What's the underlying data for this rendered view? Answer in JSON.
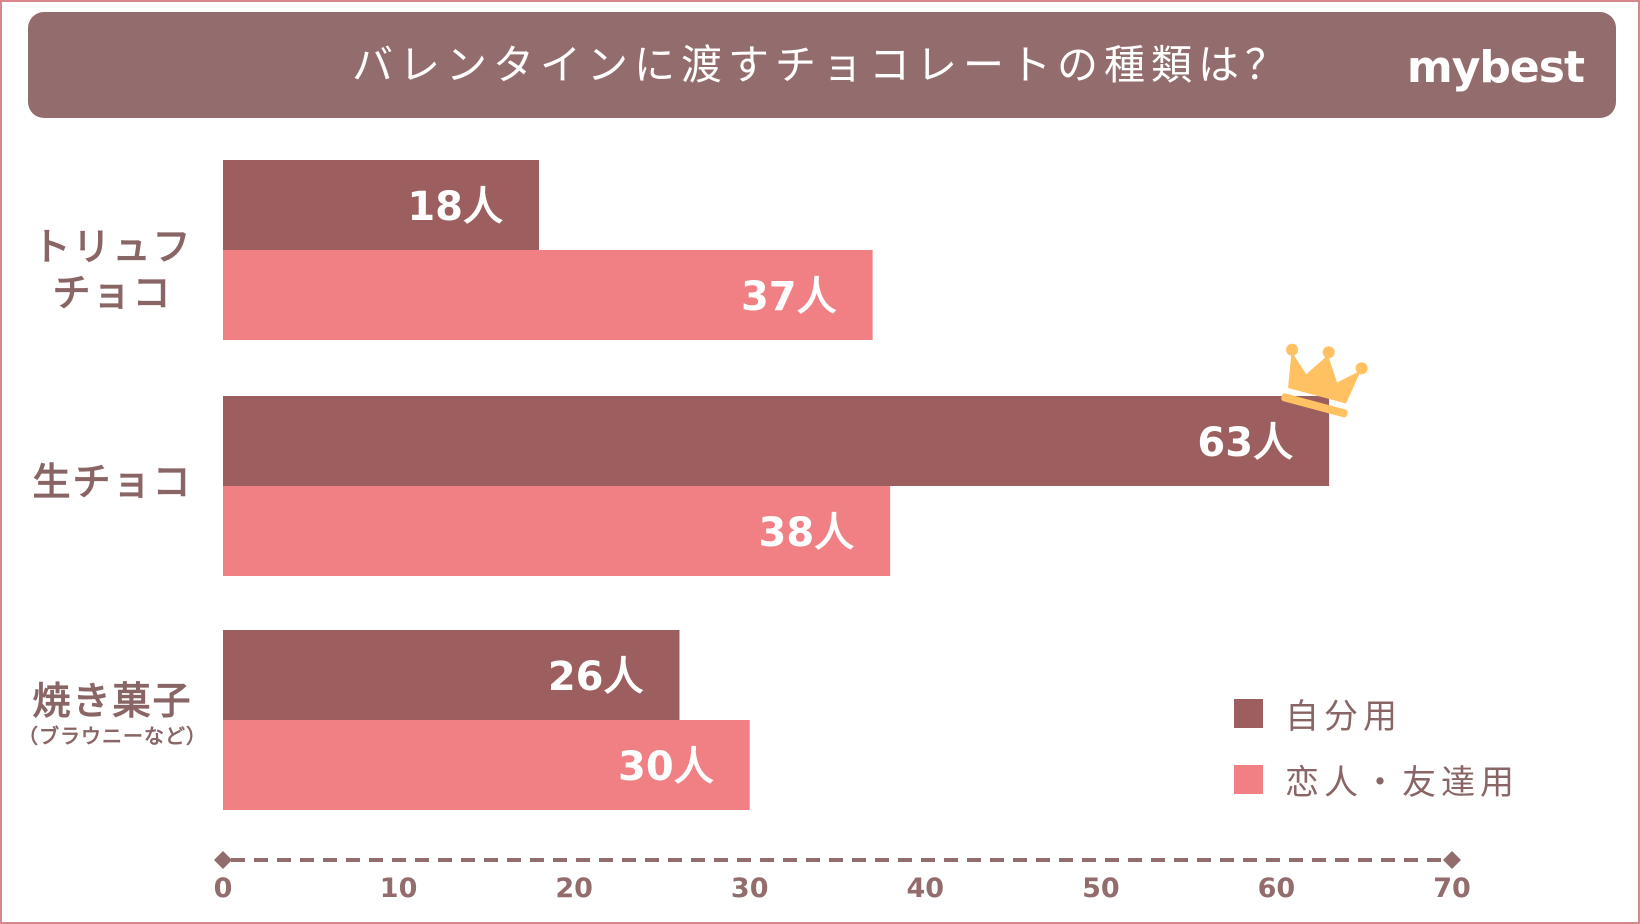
{
  "header": {
    "title": "バレンタインに渡すチョコレートの種類は？",
    "logo": "mybest"
  },
  "colors": {
    "header_bg": "#936d6d",
    "self": "#9c5e5e",
    "friends": "#f08083",
    "text": "#8a6565",
    "axis": "#936d6d",
    "crown": "#ffc161"
  },
  "chart_data": {
    "type": "bar",
    "orientation": "horizontal",
    "title": "バレンタインに渡すチョコレートの種類は？",
    "categories": [
      {
        "label_lines": [
          "トリュフ",
          "チョコ"
        ],
        "sub": ""
      },
      {
        "label_lines": [
          "生チョコ"
        ],
        "sub": ""
      },
      {
        "label_lines": [
          "焼き菓子"
        ],
        "sub": "（ブラウニーなど）"
      }
    ],
    "series": [
      {
        "name": "自分用",
        "values": [
          18,
          63,
          26
        ],
        "labels": [
          "18人",
          "63人",
          "26人"
        ]
      },
      {
        "name": "恋人・友達用",
        "values": [
          37,
          38,
          30
        ],
        "labels": [
          "37人",
          "38人",
          "30人"
        ]
      }
    ],
    "xlim": [
      0,
      70
    ],
    "x_ticks": [
      "0",
      "10",
      "20",
      "30",
      "40",
      "50",
      "60",
      "70"
    ],
    "highlight": {
      "series": 0,
      "category": 1,
      "icon": "crown-icon"
    },
    "xlabel": "",
    "ylabel": ""
  }
}
